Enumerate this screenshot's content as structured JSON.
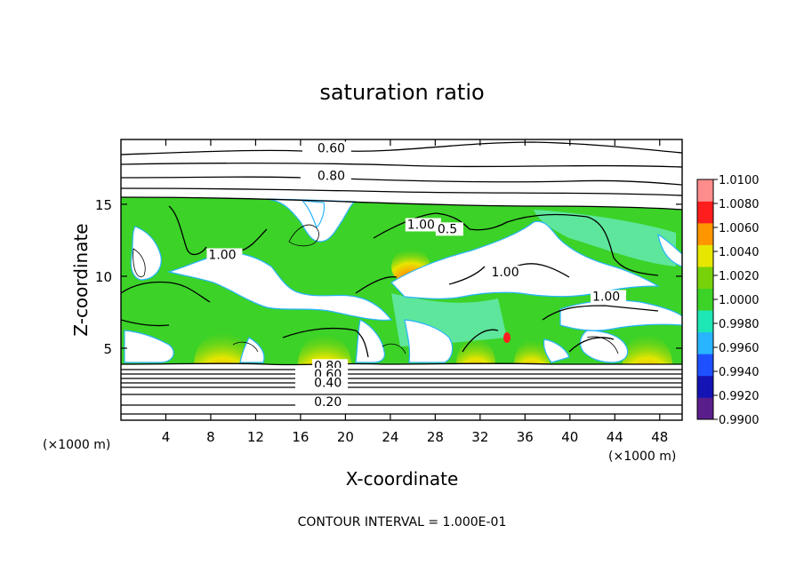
{
  "chart_data": {
    "type": "heatmap",
    "title": "saturation ratio",
    "xlabel": "X-coordinate",
    "ylabel": "Z-coordinate",
    "x_unit_left": "(×1000 m)",
    "x_unit_right": "(×1000 m)",
    "xlim": [
      0,
      50
    ],
    "ylim": [
      0,
      19.5
    ],
    "xticks": [
      4,
      8,
      12,
      16,
      20,
      24,
      28,
      32,
      36,
      40,
      44,
      48
    ],
    "yticks": [
      5,
      10,
      15
    ],
    "contour_interval_text": "CONTOUR INTERVAL = 1.000E-01",
    "colorbar": {
      "min": 0.99,
      "max": 1.01,
      "levels": [
        "0.9900",
        "0.9920",
        "0.9940",
        "0.9960",
        "0.9980",
        "1.0000",
        "1.0020",
        "1.0040",
        "1.0060",
        "1.0080",
        "1.0100"
      ],
      "colors": [
        "#5a1e8c",
        "#1414b4",
        "#1e50ff",
        "#28b4ff",
        "#1ee6b4",
        "#3cd228",
        "#78d20a",
        "#e6e600",
        "#ff9600",
        "#ff1e1e",
        "#ff8c8c"
      ]
    },
    "contour_labels": [
      {
        "text": "0.60",
        "x": 17.5,
        "y": 18.6
      },
      {
        "text": "0.80",
        "x": 17.5,
        "y": 16.7
      },
      {
        "text": "1.00",
        "x": 7.8,
        "y": 11.2
      },
      {
        "text": "1.00",
        "x": 25.5,
        "y": 13.3
      },
      {
        "text": "0.5",
        "x": 28.2,
        "y": 13.0
      },
      {
        "text": "1.00",
        "x": 33.0,
        "y": 10.0
      },
      {
        "text": "1.00",
        "x": 42.0,
        "y": 8.3
      },
      {
        "text": "0.80",
        "x": 17.2,
        "y": 3.5
      },
      {
        "text": "0.60",
        "x": 17.2,
        "y": 2.9
      },
      {
        "text": "0.40",
        "x": 17.2,
        "y": 2.3
      },
      {
        "text": "0.20",
        "x": 17.2,
        "y": 1.0
      }
    ]
  },
  "colors": {
    "field_green": "#3cd228",
    "cloud_white": "#ffffff",
    "hot_spot": "#ff9600",
    "contour": "#000000"
  }
}
